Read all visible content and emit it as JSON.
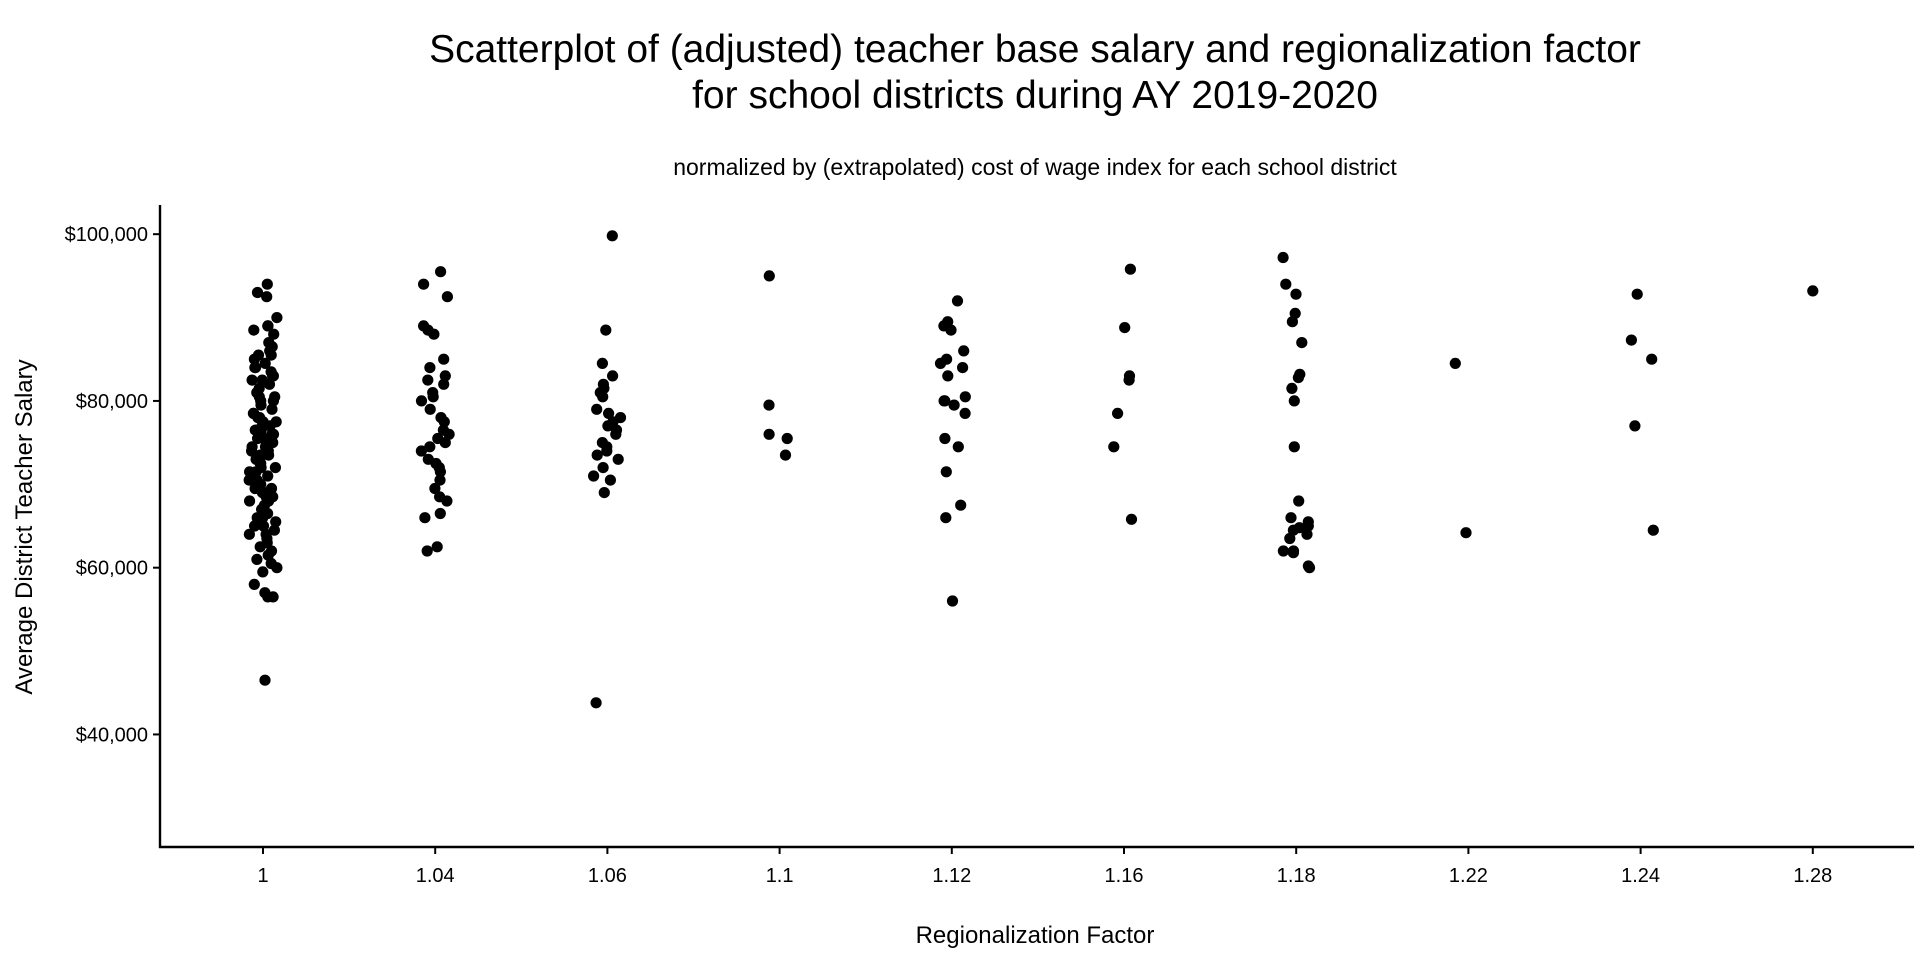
{
  "chart_data": {
    "type": "scatter",
    "title_line1": "Scatterplot of (adjusted) teacher base salary and regionalization factor",
    "title_line2": "for school districts during AY 2019-2020",
    "subtitle": "normalized by (extrapolated) cost of wage index for each school district",
    "xlabel": "Regionalization Factor",
    "ylabel": "Average District Teacher Salary",
    "x_axis_type": "categorical",
    "categories": [
      "1",
      "1.04",
      "1.06",
      "1.1",
      "1.12",
      "1.16",
      "1.18",
      "1.22",
      "1.24",
      "1.28"
    ],
    "yticks": [
      40000,
      60000,
      80000,
      100000
    ],
    "ytick_labels": [
      "$40,000",
      "$60,000",
      "$80,000",
      "$100,000"
    ],
    "ylim": [
      26500,
      103500
    ],
    "grid": false,
    "legend": "none",
    "point_color": "#000000",
    "series": [
      {
        "category": "1",
        "values": [
          94000,
          93000,
          92500,
          90000,
          89000,
          89000,
          88500,
          88000,
          87000,
          86500,
          86000,
          85500,
          85500,
          85000,
          84500,
          84000,
          84000,
          83500,
          83000,
          83000,
          82500,
          82500,
          82000,
          81500,
          81000,
          80500,
          80500,
          80000,
          80000,
          79500,
          79000,
          78500,
          78500,
          78000,
          78000,
          77500,
          77500,
          77000,
          77000,
          76500,
          76500,
          76000,
          76000,
          75500,
          75500,
          75000,
          75000,
          74500,
          74500,
          74000,
          74000,
          73500,
          73500,
          73000,
          73000,
          72500,
          72500,
          72000,
          72000,
          71500,
          71500,
          71000,
          71000,
          70500,
          70500,
          70000,
          70000,
          69500,
          69500,
          69000,
          69000,
          68500,
          68500,
          68000,
          68000,
          67500,
          67000,
          67000,
          66500,
          66000,
          66000,
          65500,
          65000,
          65000,
          64500,
          64000,
          64000,
          63500,
          63000,
          62500,
          62000,
          61500,
          61000,
          60500,
          60000,
          59500,
          58000,
          57000,
          56500,
          56500,
          46500
        ]
      },
      {
        "category": "1.04",
        "values": [
          95500,
          94000,
          92500,
          89000,
          88500,
          88000,
          85000,
          84000,
          83000,
          82500,
          82000,
          81000,
          80500,
          80000,
          79000,
          78000,
          77500,
          76500,
          76000,
          75500,
          75000,
          74500,
          74000,
          73000,
          72500,
          72000,
          71500,
          70500,
          69500,
          68500,
          68000,
          66500,
          66000,
          62500,
          62000
        ]
      },
      {
        "category": "1.06",
        "values": [
          99800,
          88500,
          84500,
          83000,
          82000,
          81500,
          81000,
          80500,
          79000,
          78500,
          78000,
          77500,
          77000,
          76500,
          76000,
          75000,
          74500,
          74000,
          73500,
          73000,
          72000,
          71000,
          70500,
          69000,
          43800
        ]
      },
      {
        "category": "1.1",
        "values": [
          95000,
          79500,
          76000,
          75500,
          73500
        ]
      },
      {
        "category": "1.12",
        "values": [
          92000,
          89500,
          89000,
          88500,
          86000,
          85000,
          84500,
          84000,
          83000,
          80500,
          80000,
          80000,
          79500,
          78500,
          75500,
          74500,
          71500,
          67500,
          66000,
          56000
        ]
      },
      {
        "category": "1.16",
        "values": [
          95800,
          88800,
          83000,
          82500,
          78500,
          74500,
          65800
        ]
      },
      {
        "category": "1.18",
        "values": [
          97200,
          94000,
          92800,
          90500,
          89500,
          87000,
          83200,
          82800,
          81500,
          80000,
          74500,
          68000,
          66000,
          65500,
          65000,
          64800,
          64500,
          64000,
          63500,
          62000,
          62000,
          61800,
          60200,
          60000
        ]
      },
      {
        "category": "1.22",
        "values": [
          84500,
          64200
        ]
      },
      {
        "category": "1.24",
        "values": [
          92800,
          87300,
          85000,
          77000,
          64500
        ]
      },
      {
        "category": "1.28",
        "values": [
          93200
        ]
      }
    ]
  }
}
